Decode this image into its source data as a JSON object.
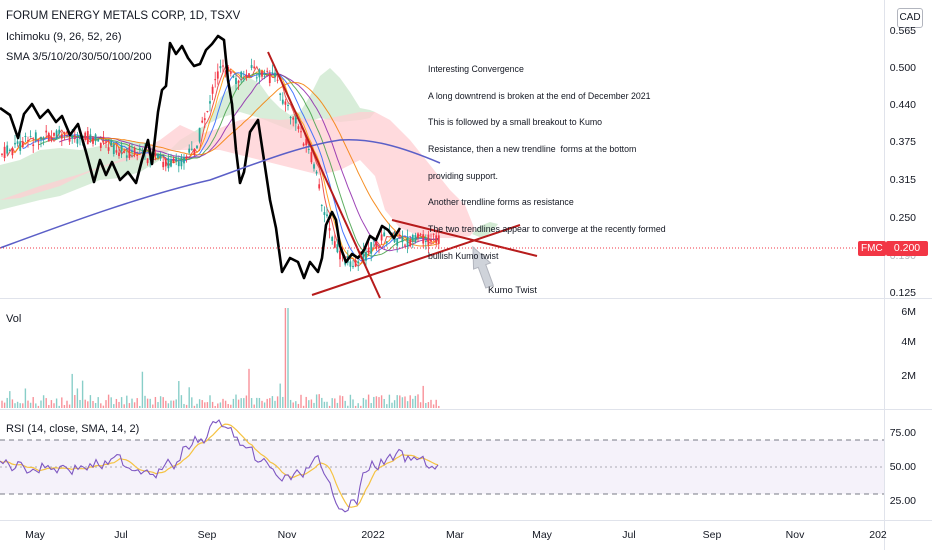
{
  "header": {
    "title": "FORUM ENERGY METALS CORP, 1D, TSXV",
    "currency_button": "CAD"
  },
  "indicators": {
    "ichimoku": "Ichimoku (9, 26, 52, 26)",
    "sma": "SMA 3/5/10/20/30/50/100/200",
    "volume": "Vol",
    "rsi": "RSI (14, close, SMA, 14, 2)"
  },
  "price_axis": {
    "labels": [
      "0.565",
      "0.500",
      "0.440",
      "0.375",
      "0.315",
      "0.250",
      "0.190",
      "0.125"
    ],
    "last_price_symbol": "FMC",
    "last_price_value": "0.200"
  },
  "volume_axis": {
    "labels": [
      "6M",
      "4M",
      "2M"
    ]
  },
  "rsi_axis": {
    "labels": [
      "75.00",
      "50.00",
      "25.00"
    ]
  },
  "time_axis": {
    "labels": [
      "May",
      "Jul",
      "Sep",
      "Nov",
      "2022",
      "Mar",
      "May",
      "Jul",
      "Sep",
      "Nov",
      "202"
    ]
  },
  "annotations": {
    "convergence_note": [
      "Interesting Convergence",
      "A long downtrend is broken at the end of December 2021",
      "This is followed by a small breakout to Kumo",
      "Resistance, then a new trendline  forms at the bottom",
      "providing support.",
      "Another trendline forms as resistance",
      "The two trendlines appear to converge at the recently formed",
      "bullish Kumo twist"
    ],
    "kumo_twist_label": "Kumo Twist"
  },
  "colors": {
    "up": "#26a69a",
    "down": "#f23645",
    "trendline": "#b71c1c",
    "sma200": "#5b5fc7",
    "rsi": "#7e57c2",
    "rsi_sma": "#f5c342",
    "cloud_bull": "#c8e6c9",
    "cloud_bear": "#ffcdd2"
  }
}
